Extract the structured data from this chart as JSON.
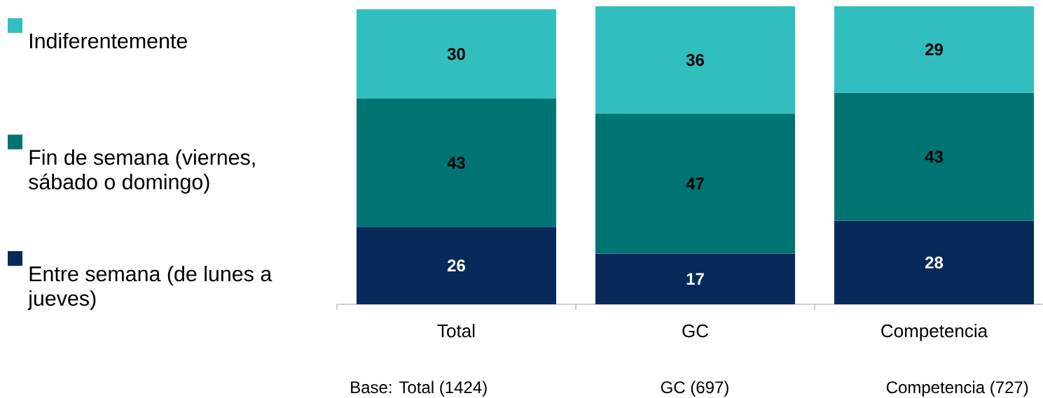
{
  "chart_data": {
    "type": "bar",
    "stacked": true,
    "categories": [
      "Total",
      "GC",
      "Competencia"
    ],
    "series": [
      {
        "name": "Entre semana (de lunes a jueves)",
        "color": "#07295a",
        "values": [
          26,
          17,
          28
        ]
      },
      {
        "name": "Fin de semana (viernes, sábado o domingo)",
        "color": "#007373",
        "values": [
          43,
          47,
          43
        ]
      },
      {
        "name": "Indiferentemente",
        "color": "#30bebe",
        "values": [
          30,
          36,
          29
        ]
      }
    ],
    "data_labels": true,
    "legend": "left",
    "tick_labels": "x",
    "annotations": [
      "Base: Total (1424)",
      "GC (697)",
      "Competencia (727)"
    ]
  }
}
